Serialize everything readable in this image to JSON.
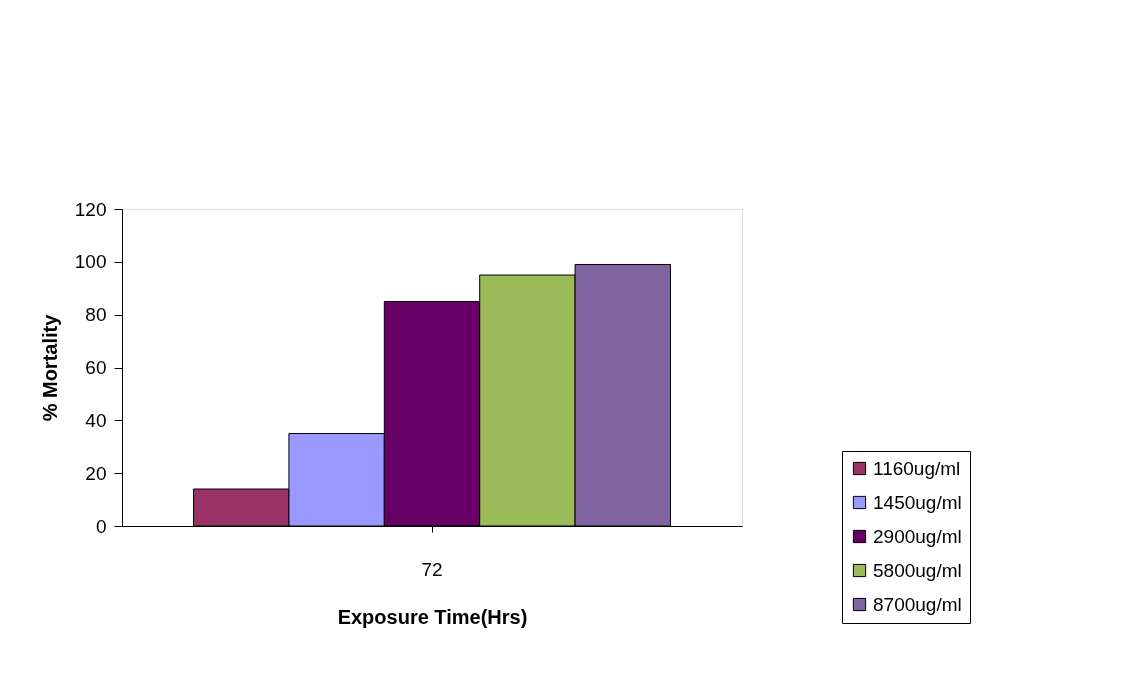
{
  "chart_data": {
    "type": "bar",
    "xlabel": "Exposure Time(Hrs)",
    "ylabel": "% Mortality",
    "categories": [
      "72"
    ],
    "series": [
      {
        "name": "1160ug/ml",
        "color": "#993366",
        "values": [
          14
        ]
      },
      {
        "name": "1450ug/ml",
        "color": "#9999ff",
        "values": [
          35
        ]
      },
      {
        "name": "2900ug/ml",
        "color": "#660066",
        "values": [
          85
        ]
      },
      {
        "name": "5800ug/ml",
        "color": "#9bbb59",
        "values": [
          95
        ]
      },
      {
        "name": "8700ug/ml",
        "color": "#8064a2",
        "values": [
          99
        ]
      }
    ],
    "ylim": [
      0,
      120
    ],
    "yticks": [
      0,
      20,
      40,
      60,
      80,
      100,
      120
    ],
    "grid": false,
    "legend": "bottom right"
  }
}
